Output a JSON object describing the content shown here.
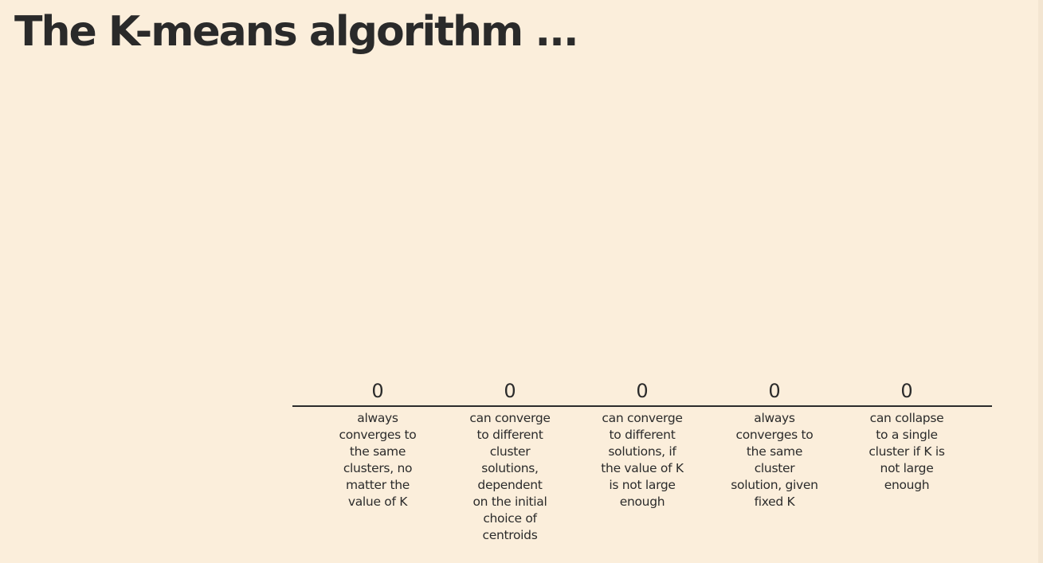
{
  "slide": {
    "title": "The K-means algorithm ..."
  },
  "chart_data": {
    "type": "bar",
    "title": "",
    "xlabel": "",
    "ylabel": "",
    "categories": [
      [
        "always",
        "converges to",
        "the same",
        "clusters, no",
        "matter the",
        "value of K"
      ],
      [
        "can converge",
        "to different",
        "cluster",
        "solutions,",
        "dependent",
        "on the initial",
        "choice of",
        "centroids"
      ],
      [
        "can converge",
        "to different",
        "solutions, if",
        "the value of K",
        "is not large",
        "enough"
      ],
      [
        "always",
        "converges to",
        "the same",
        "cluster",
        "solution, given",
        "fixed K"
      ],
      [
        "can collapse",
        "to a single",
        "cluster if K is",
        "not large",
        "enough"
      ]
    ],
    "values": [
      0,
      0,
      0,
      0,
      0
    ],
    "value_labels": [
      "0",
      "0",
      "0",
      "0",
      "0"
    ],
    "grid": false,
    "colors": {
      "background": "#fbeedb",
      "axis": "#2b2b2b",
      "text": "#2b2b2b"
    }
  }
}
